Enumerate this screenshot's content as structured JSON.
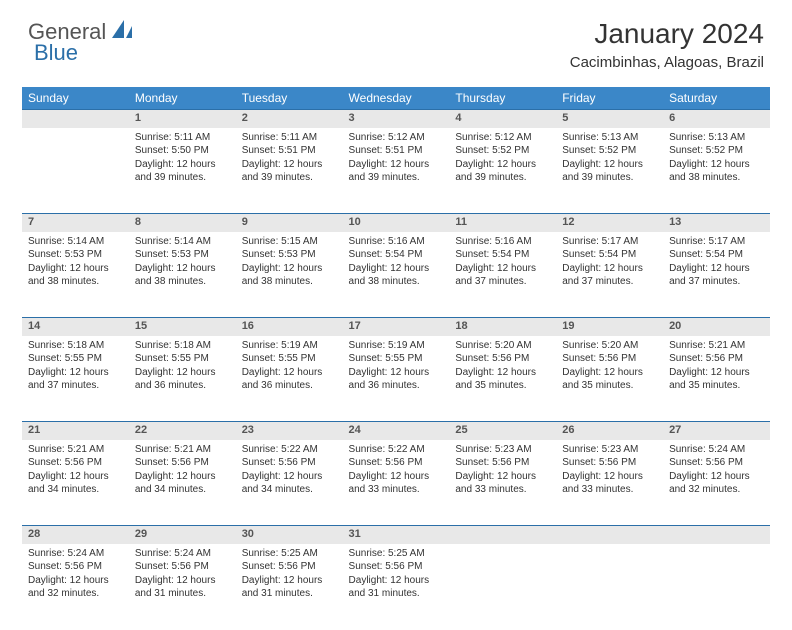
{
  "logo": {
    "general": "General",
    "blue": "Blue"
  },
  "title": "January 2024",
  "location": "Cacimbinhas, Alagoas, Brazil",
  "colors": {
    "header_bg": "#3b87c8",
    "header_text": "#ffffff",
    "daynum_bg": "#e8e8e8",
    "daynum_border": "#2b6fa8",
    "body_text": "#333333",
    "logo_gray": "#555555",
    "logo_blue": "#2b6fa8",
    "page_bg": "#ffffff"
  },
  "fonts": {
    "title_size_pt": 21,
    "location_size_pt": 11,
    "header_size_pt": 9,
    "cell_size_pt": 7.5,
    "daynum_size_pt": 8
  },
  "dayHeaders": [
    "Sunday",
    "Monday",
    "Tuesday",
    "Wednesday",
    "Thursday",
    "Friday",
    "Saturday"
  ],
  "weeks": [
    {
      "nums": [
        "",
        "1",
        "2",
        "3",
        "4",
        "5",
        "6"
      ],
      "cells": [
        null,
        {
          "sunrise": "5:11 AM",
          "sunset": "5:50 PM",
          "daylight": "12 hours and 39 minutes."
        },
        {
          "sunrise": "5:11 AM",
          "sunset": "5:51 PM",
          "daylight": "12 hours and 39 minutes."
        },
        {
          "sunrise": "5:12 AM",
          "sunset": "5:51 PM",
          "daylight": "12 hours and 39 minutes."
        },
        {
          "sunrise": "5:12 AM",
          "sunset": "5:52 PM",
          "daylight": "12 hours and 39 minutes."
        },
        {
          "sunrise": "5:13 AM",
          "sunset": "5:52 PM",
          "daylight": "12 hours and 39 minutes."
        },
        {
          "sunrise": "5:13 AM",
          "sunset": "5:52 PM",
          "daylight": "12 hours and 38 minutes."
        }
      ]
    },
    {
      "nums": [
        "7",
        "8",
        "9",
        "10",
        "11",
        "12",
        "13"
      ],
      "cells": [
        {
          "sunrise": "5:14 AM",
          "sunset": "5:53 PM",
          "daylight": "12 hours and 38 minutes."
        },
        {
          "sunrise": "5:14 AM",
          "sunset": "5:53 PM",
          "daylight": "12 hours and 38 minutes."
        },
        {
          "sunrise": "5:15 AM",
          "sunset": "5:53 PM",
          "daylight": "12 hours and 38 minutes."
        },
        {
          "sunrise": "5:16 AM",
          "sunset": "5:54 PM",
          "daylight": "12 hours and 38 minutes."
        },
        {
          "sunrise": "5:16 AM",
          "sunset": "5:54 PM",
          "daylight": "12 hours and 37 minutes."
        },
        {
          "sunrise": "5:17 AM",
          "sunset": "5:54 PM",
          "daylight": "12 hours and 37 minutes."
        },
        {
          "sunrise": "5:17 AM",
          "sunset": "5:54 PM",
          "daylight": "12 hours and 37 minutes."
        }
      ]
    },
    {
      "nums": [
        "14",
        "15",
        "16",
        "17",
        "18",
        "19",
        "20"
      ],
      "cells": [
        {
          "sunrise": "5:18 AM",
          "sunset": "5:55 PM",
          "daylight": "12 hours and 37 minutes."
        },
        {
          "sunrise": "5:18 AM",
          "sunset": "5:55 PM",
          "daylight": "12 hours and 36 minutes."
        },
        {
          "sunrise": "5:19 AM",
          "sunset": "5:55 PM",
          "daylight": "12 hours and 36 minutes."
        },
        {
          "sunrise": "5:19 AM",
          "sunset": "5:55 PM",
          "daylight": "12 hours and 36 minutes."
        },
        {
          "sunrise": "5:20 AM",
          "sunset": "5:56 PM",
          "daylight": "12 hours and 35 minutes."
        },
        {
          "sunrise": "5:20 AM",
          "sunset": "5:56 PM",
          "daylight": "12 hours and 35 minutes."
        },
        {
          "sunrise": "5:21 AM",
          "sunset": "5:56 PM",
          "daylight": "12 hours and 35 minutes."
        }
      ]
    },
    {
      "nums": [
        "21",
        "22",
        "23",
        "24",
        "25",
        "26",
        "27"
      ],
      "cells": [
        {
          "sunrise": "5:21 AM",
          "sunset": "5:56 PM",
          "daylight": "12 hours and 34 minutes."
        },
        {
          "sunrise": "5:21 AM",
          "sunset": "5:56 PM",
          "daylight": "12 hours and 34 minutes."
        },
        {
          "sunrise": "5:22 AM",
          "sunset": "5:56 PM",
          "daylight": "12 hours and 34 minutes."
        },
        {
          "sunrise": "5:22 AM",
          "sunset": "5:56 PM",
          "daylight": "12 hours and 33 minutes."
        },
        {
          "sunrise": "5:23 AM",
          "sunset": "5:56 PM",
          "daylight": "12 hours and 33 minutes."
        },
        {
          "sunrise": "5:23 AM",
          "sunset": "5:56 PM",
          "daylight": "12 hours and 33 minutes."
        },
        {
          "sunrise": "5:24 AM",
          "sunset": "5:56 PM",
          "daylight": "12 hours and 32 minutes."
        }
      ]
    },
    {
      "nums": [
        "28",
        "29",
        "30",
        "31",
        "",
        "",
        ""
      ],
      "cells": [
        {
          "sunrise": "5:24 AM",
          "sunset": "5:56 PM",
          "daylight": "12 hours and 32 minutes."
        },
        {
          "sunrise": "5:24 AM",
          "sunset": "5:56 PM",
          "daylight": "12 hours and 31 minutes."
        },
        {
          "sunrise": "5:25 AM",
          "sunset": "5:56 PM",
          "daylight": "12 hours and 31 minutes."
        },
        {
          "sunrise": "5:25 AM",
          "sunset": "5:56 PM",
          "daylight": "12 hours and 31 minutes."
        },
        null,
        null,
        null
      ]
    }
  ],
  "labels": {
    "sunrise": "Sunrise:",
    "sunset": "Sunset:",
    "daylight": "Daylight:"
  }
}
